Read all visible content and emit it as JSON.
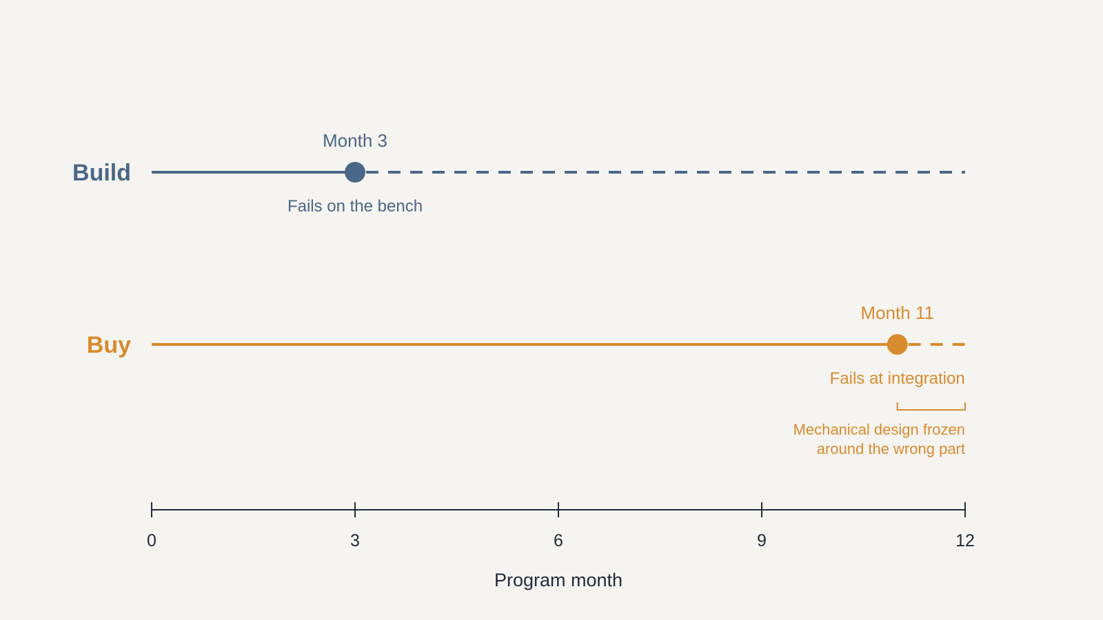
{
  "chart_data": {
    "type": "timeline",
    "xlabel": "Program month",
    "xlim": [
      0,
      12
    ],
    "ticks": [
      0,
      3,
      6,
      9,
      12
    ],
    "rows": [
      {
        "label": "Build",
        "color": "#4a6788",
        "event_month": 3,
        "event_label": "Month 3",
        "event_note": "Fails on the bench"
      },
      {
        "label": "Buy",
        "color": "#d98b2f",
        "event_month": 11,
        "event_label": "Month 11",
        "event_note": "Fails at integration",
        "bracket": {
          "from": 11,
          "to": 12,
          "note_lines": [
            "Mechanical design frozen",
            "around the wrong part"
          ]
        }
      }
    ],
    "axis_color": "#1f2a3a",
    "background": "#f6f4f0"
  }
}
